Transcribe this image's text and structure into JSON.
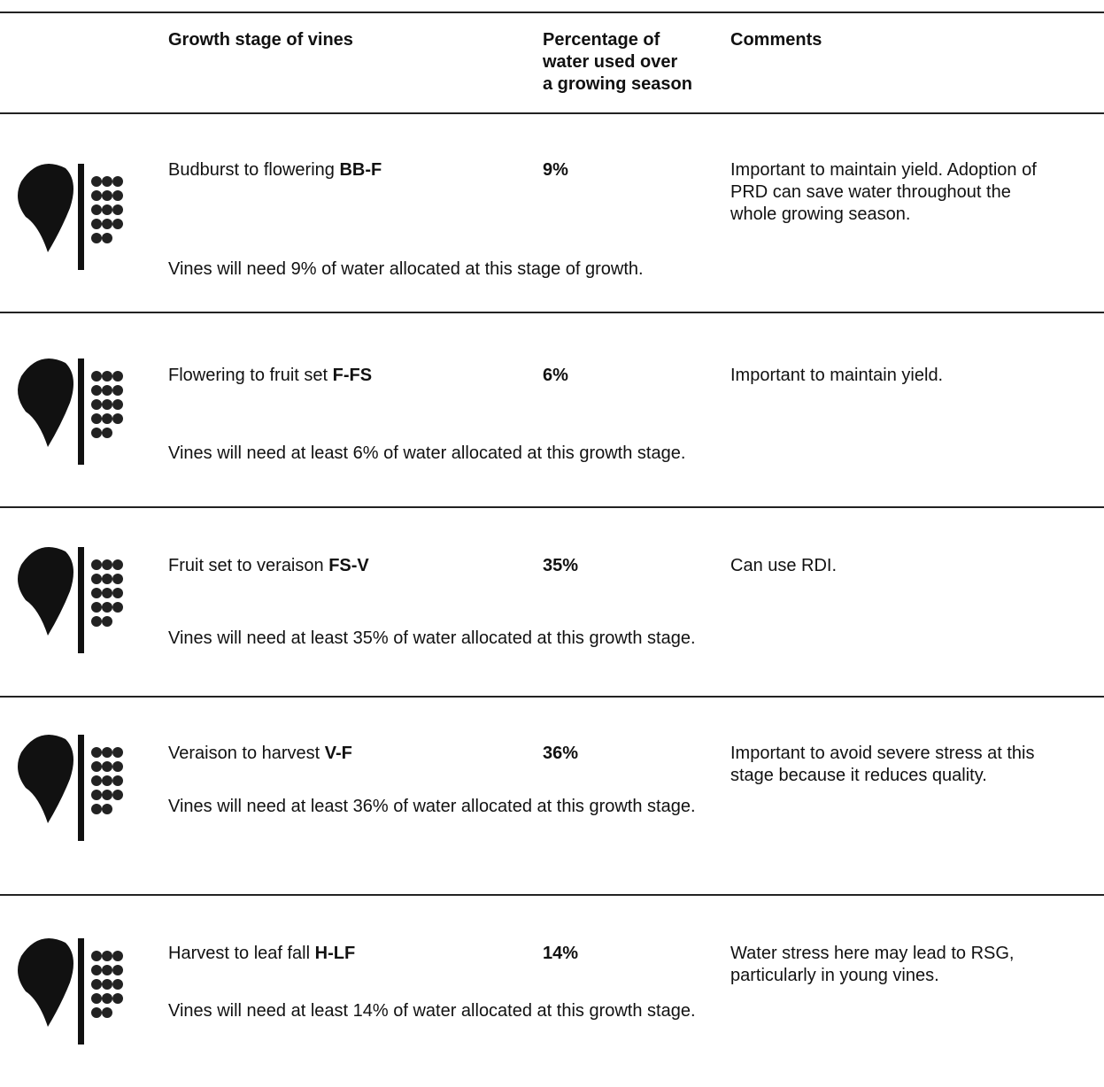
{
  "header": {
    "stage": "Growth stage of vines",
    "percentage": [
      "Percentage of",
      "water used over",
      "a growing season"
    ],
    "comments": "Comments"
  },
  "rows": [
    {
      "stage": "Budburst to flowering",
      "code": "BB-F",
      "percentage": "9%",
      "comments": [
        "Important to maintain yield. Adoption of",
        "PRD can save water throughout the",
        "whole growing season."
      ],
      "note": "Vines will need 9% of water allocated at this stage of growth."
    },
    {
      "stage": "Flowering to fruit set",
      "code": "F-FS",
      "percentage": "6%",
      "comments": [
        "Important to maintain yield."
      ],
      "note": "Vines will need  at least 6% of water allocated at this growth stage."
    },
    {
      "stage": "Fruit set to veraison",
      "code": "FS-V",
      "percentage": "35%",
      "comments": [
        "Can use RDI."
      ],
      "note": "Vines will need  at least 35% of water allocated at this growth stage."
    },
    {
      "stage": "Veraison to harvest",
      "code": "V-F",
      "percentage": "36%",
      "comments": [
        "Important to avoid severe stress at this",
        "stage because it reduces quality."
      ],
      "note": "Vines will need  at least 36% of water allocated at this growth stage."
    },
    {
      "stage": "Harvest to leaf fall",
      "code": "H-LF",
      "percentage": "14%",
      "comments": [
        "Water stress here may lead to RSG,",
        "particularly in young vines."
      ],
      "note": "Vines will need  at least 14% of water allocated at this growth stage."
    }
  ]
}
